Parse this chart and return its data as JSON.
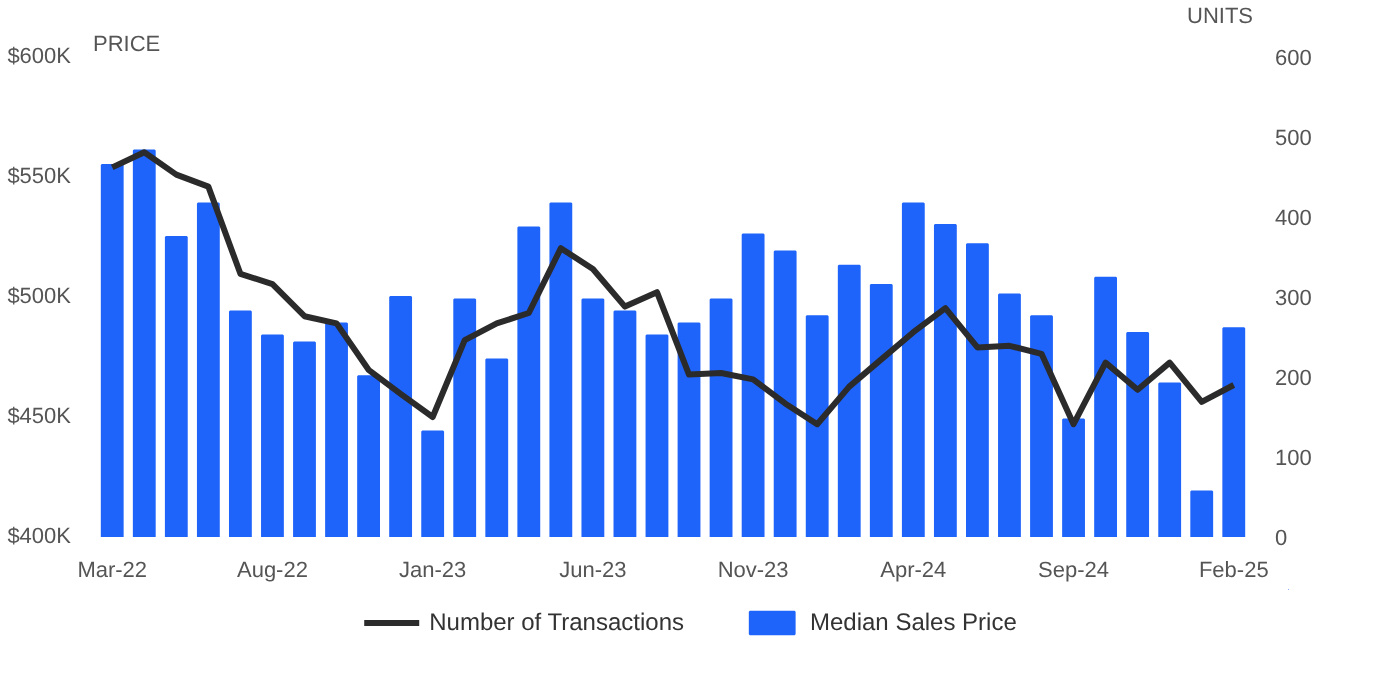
{
  "chart_data": {
    "type": "bar",
    "ylabel": "PRICE",
    "y2label": "UNITS",
    "categories": [
      "Mar-22",
      null,
      null,
      null,
      null,
      "Aug-22",
      null,
      null,
      null,
      null,
      "Jan-23",
      null,
      null,
      null,
      null,
      "Jun-23",
      null,
      null,
      null,
      null,
      "Nov-23",
      null,
      null,
      null,
      null,
      "Apr-24",
      null,
      null,
      null,
      null,
      "Sep-24",
      null,
      null,
      null,
      null,
      "Feb-25"
    ],
    "series": [
      {
        "name": "Median Sales Price",
        "color": "#1f64fa",
        "values": [
          555,
          561,
          525,
          539,
          494,
          484,
          481,
          489,
          467,
          500,
          444,
          499,
          474,
          529,
          539,
          499,
          494,
          484,
          489,
          499,
          526,
          519,
          492,
          513,
          505,
          539,
          530,
          522,
          501,
          492,
          449,
          508,
          485,
          464,
          419,
          487
        ]
      },
      {
        "name": "Number of Transactions",
        "type": "line",
        "axis": "y2",
        "color": "#2b2b2b",
        "values": [
          462,
          481,
          453,
          438,
          329,
          316,
          276,
          267,
          209,
          179,
          150,
          246,
          267,
          280,
          361,
          335,
          288,
          306,
          203,
          205,
          197,
          167,
          141,
          188,
          222,
          256,
          286,
          237,
          239,
          229,
          141,
          218,
          184,
          218,
          169,
          190
        ]
      }
    ],
    "ylim": [
      400,
      600
    ],
    "yticks": [
      {
        "value": 400,
        "label": "$400K"
      },
      {
        "value": 450,
        "label": "$450K"
      },
      {
        "value": 500,
        "label": "$500K"
      },
      {
        "value": 550,
        "label": "$550K"
      },
      {
        "value": 600,
        "label": "$600K"
      }
    ],
    "y2lim": [
      0,
      600
    ],
    "y2ticks": [
      0,
      100,
      200,
      300,
      400,
      500,
      600
    ],
    "grid": false,
    "legend": "bottom",
    "marker": "none",
    "line_style": "solid"
  }
}
